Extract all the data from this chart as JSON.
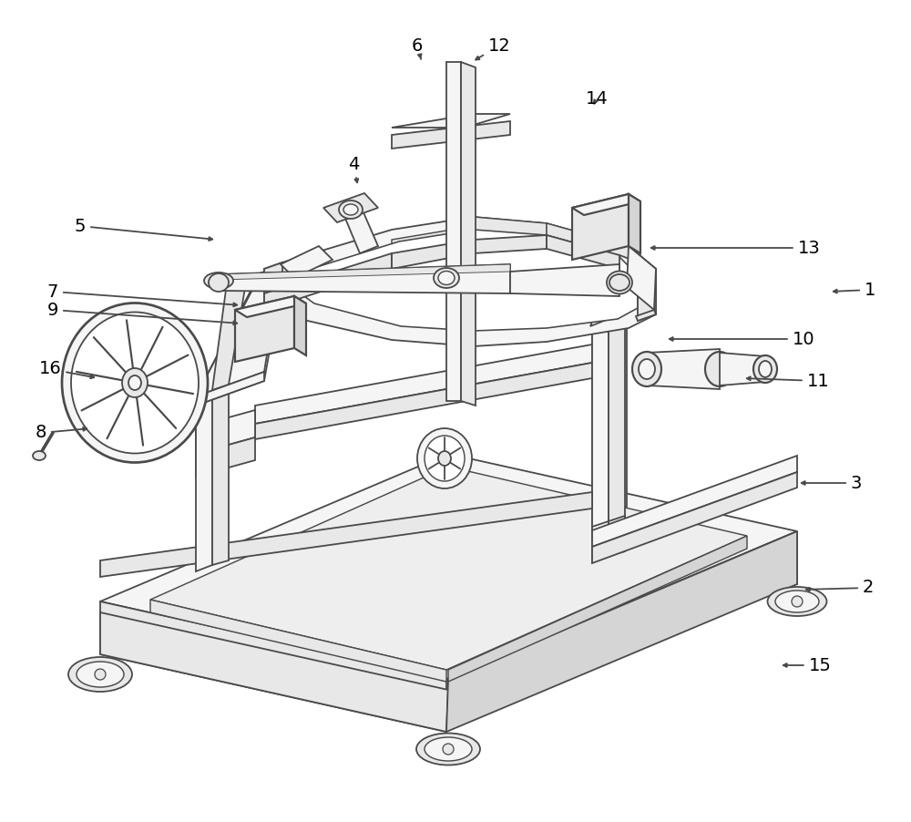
{
  "bg_color": "#ffffff",
  "line_color": "#4a4a4a",
  "fill_light": "#f5f5f5",
  "fill_mid": "#e8e8e8",
  "fill_dark": "#d5d5d5",
  "lw": 1.3,
  "labels": [
    [
      1,
      910,
      320,
      955,
      318
    ],
    [
      2,
      880,
      647,
      953,
      645
    ],
    [
      3,
      875,
      530,
      940,
      530
    ],
    [
      4,
      393,
      205,
      388,
      180
    ],
    [
      5,
      238,
      263,
      88,
      248
    ],
    [
      6,
      463,
      68,
      458,
      50
    ],
    [
      7,
      265,
      335,
      58,
      320
    ],
    [
      8,
      100,
      470,
      45,
      475
    ],
    [
      9,
      265,
      355,
      58,
      340
    ],
    [
      10,
      730,
      372,
      882,
      372
    ],
    [
      11,
      815,
      415,
      898,
      418
    ],
    [
      12,
      518,
      68,
      548,
      50
    ],
    [
      13,
      710,
      272,
      888,
      272
    ],
    [
      14,
      650,
      118,
      655,
      108
    ],
    [
      15,
      855,
      730,
      900,
      730
    ],
    [
      16,
      108,
      415,
      55,
      405
    ]
  ]
}
